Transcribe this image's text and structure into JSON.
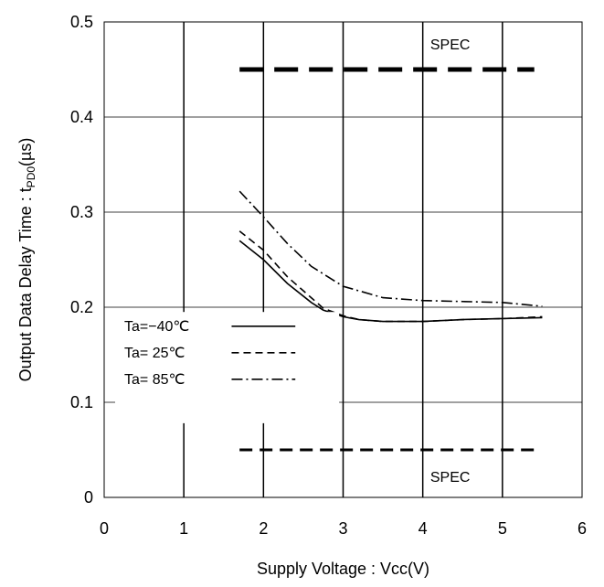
{
  "chart_data": {
    "type": "line",
    "title": "",
    "xlabel": "Supply Voltage : Vcc(V)",
    "ylabel_main": "Output Data Delay Time : t",
    "ylabel_sub": "PD0",
    "ylabel_unit": "(µs)",
    "xlim": [
      0,
      6
    ],
    "ylim": [
      0,
      0.5
    ],
    "x_ticks": [
      "0",
      "1",
      "2",
      "3",
      "4",
      "5",
      "6"
    ],
    "y_ticks": [
      "0",
      "0.1",
      "0.2",
      "0.3",
      "0.4",
      "0.5"
    ],
    "grid": true,
    "legend_position": "left-middle",
    "series": [
      {
        "name": "Ta=−40℃",
        "style": "solid",
        "color": "#000000",
        "x": [
          1.7,
          2.0,
          2.3,
          2.6,
          2.75,
          3.0,
          3.2,
          3.5,
          4.0,
          4.5,
          5.0,
          5.5
        ],
        "y": [
          0.27,
          0.25,
          0.225,
          0.205,
          0.197,
          0.19,
          0.187,
          0.185,
          0.185,
          0.187,
          0.188,
          0.189
        ]
      },
      {
        "name": "Ta= 25℃",
        "style": "dashed",
        "color": "#000000",
        "x": [
          1.7,
          2.0,
          2.3,
          2.6,
          2.75,
          3.0,
          3.2,
          3.5,
          4.0,
          4.5,
          5.0,
          5.5
        ],
        "y": [
          0.28,
          0.26,
          0.232,
          0.21,
          0.199,
          0.191,
          0.187,
          0.185,
          0.185,
          0.187,
          0.188,
          0.19
        ]
      },
      {
        "name": "Ta= 85℃",
        "style": "dashdot",
        "color": "#000000",
        "x": [
          1.7,
          2.0,
          2.3,
          2.6,
          3.0,
          3.5,
          4.0,
          4.5,
          5.0,
          5.5
        ],
        "y": [
          0.322,
          0.295,
          0.267,
          0.243,
          0.222,
          0.21,
          0.207,
          0.206,
          0.205,
          0.201
        ]
      }
    ],
    "spec_lines": [
      {
        "label": "SPEC",
        "y": 0.45,
        "x": [
          1.7,
          5.4
        ],
        "label_x": 4.0
      },
      {
        "label": "SPEC",
        "y": 0.05,
        "x": [
          1.7,
          5.4
        ],
        "label_x": 4.0
      }
    ]
  }
}
